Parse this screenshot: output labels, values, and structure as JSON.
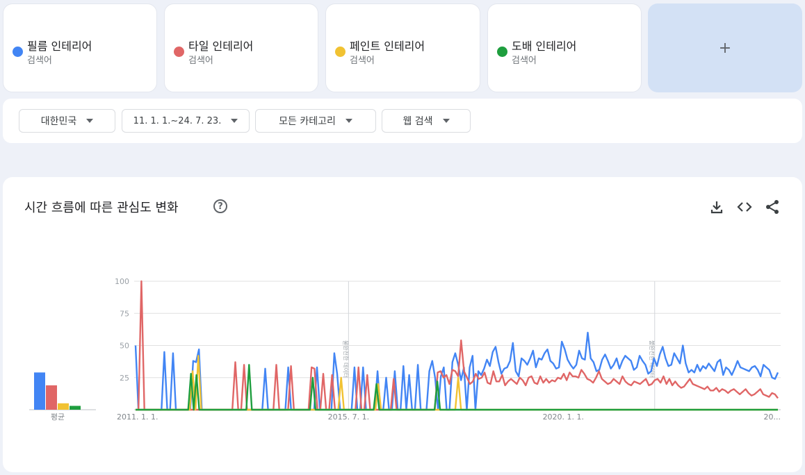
{
  "terms": [
    {
      "name": "필름 인테리어",
      "type": "검색어",
      "color": "#4285f4"
    },
    {
      "name": "타일 인테리어",
      "type": "검색어",
      "color": "#e06666"
    },
    {
      "name": "페인트 인테리어",
      "type": "검색어",
      "color": "#f1c232"
    },
    {
      "name": "도배 인테리어",
      "type": "검색어",
      "color": "#1e9e3e"
    }
  ],
  "add_term_label": "+",
  "filters": {
    "region": "대한민국",
    "period": "11. 1. 1.~24. 7. 23.",
    "category": "모든 카테고리",
    "search_type": "웹 검색"
  },
  "chart_panel": {
    "title": "시간 흐름에 따른 관심도 변화",
    "help_glyph": "?",
    "icons": [
      "download-icon",
      "embed-icon",
      "share-icon"
    ]
  },
  "chart_data": {
    "type": "line",
    "ylim": [
      0,
      100
    ],
    "yticks": [
      100,
      75,
      50,
      25
    ],
    "x_axis_labels": [
      "2011. 1. 1.",
      "2015. 7. 1.",
      "2020. 1. 1.",
      "20..."
    ],
    "x_range": [
      "2011-01-01",
      "2024-07-23"
    ],
    "partial_data_markers": [
      "2015-07-01",
      "2021-12-01"
    ],
    "partial_data_marker_text": "불완전한 데이터",
    "average": {
      "label": "평균",
      "values": [
        29,
        19,
        5,
        3
      ]
    },
    "series": [
      {
        "name": "필름 인테리어",
        "color": "#4285f4",
        "values": [
          50,
          0,
          0,
          0,
          0,
          0,
          0,
          0,
          0,
          0,
          45,
          0,
          0,
          44,
          0,
          0,
          0,
          0,
          0,
          0,
          38,
          37,
          47,
          0,
          0,
          0,
          0,
          0,
          0,
          0,
          0,
          0,
          0,
          0,
          0,
          0,
          0,
          0,
          0,
          0,
          0,
          0,
          0,
          0,
          0,
          32,
          0,
          0,
          0,
          0,
          0,
          0,
          0,
          33,
          0,
          0,
          0,
          0,
          0,
          0,
          0,
          0,
          0,
          33,
          0,
          0,
          0,
          0,
          0,
          44,
          28,
          0,
          0,
          0,
          0,
          0,
          33,
          0,
          0,
          33,
          0,
          0,
          0,
          0,
          30,
          0,
          0,
          25,
          0,
          0,
          30,
          0,
          0,
          34,
          0,
          27,
          0,
          0,
          35,
          0,
          0,
          0,
          30,
          38,
          25,
          0,
          26,
          33,
          0,
          0,
          37,
          44,
          35,
          23,
          33,
          0,
          33,
          42,
          0,
          30,
          27,
          32,
          39,
          34,
          45,
          49,
          37,
          28,
          32,
          33,
          38,
          52,
          30,
          26,
          40,
          38,
          35,
          40,
          46,
          33,
          40,
          39,
          44,
          47,
          38,
          36,
          32,
          33,
          53,
          47,
          39,
          35,
          32,
          35,
          46,
          40,
          39,
          60,
          40,
          37,
          30,
          31,
          39,
          43,
          38,
          32,
          35,
          40,
          32,
          38,
          42,
          40,
          38,
          31,
          33,
          42,
          38,
          35,
          28,
          30,
          40,
          34,
          43,
          49,
          40,
          34,
          35,
          44,
          40,
          36,
          50,
          36,
          29,
          31,
          29,
          35,
          30,
          34,
          32,
          36,
          33,
          30,
          37,
          39,
          27,
          33,
          31,
          27,
          32,
          38,
          33,
          32,
          31,
          30,
          33,
          34,
          31,
          26,
          35,
          33,
          31,
          25,
          24,
          29
        ]
      },
      {
        "name": "타일 인테리어",
        "color": "#e06666",
        "values": [
          0,
          0,
          100,
          0,
          0,
          0,
          0,
          0,
          0,
          0,
          0,
          0,
          0,
          0,
          0,
          0,
          0,
          0,
          0,
          0,
          0,
          0,
          0,
          0,
          0,
          0,
          0,
          0,
          0,
          0,
          0,
          0,
          0,
          0,
          37,
          0,
          0,
          35,
          0,
          0,
          0,
          0,
          0,
          0,
          0,
          0,
          0,
          0,
          35,
          0,
          0,
          0,
          0,
          34,
          0,
          0,
          0,
          0,
          0,
          0,
          33,
          32,
          0,
          0,
          28,
          0,
          0,
          27,
          0,
          0,
          0,
          0,
          0,
          0,
          0,
          0,
          33,
          0,
          0,
          27,
          0,
          0,
          0,
          0,
          0,
          0,
          0,
          0,
          24,
          0,
          0,
          0,
          0,
          0,
          0,
          0,
          0,
          0,
          0,
          0,
          0,
          0,
          0,
          29,
          30,
          25,
          27,
          20,
          31,
          30,
          26,
          54,
          30,
          25,
          20,
          22,
          28,
          24,
          25,
          29,
          21,
          20,
          30,
          22,
          22,
          27,
          19,
          22,
          24,
          22,
          20,
          25,
          23,
          19,
          25,
          26,
          21,
          20,
          26,
          21,
          24,
          21,
          23,
          22,
          25,
          24,
          28,
          23,
          29,
          26,
          26,
          25,
          31,
          28,
          24,
          23,
          21,
          25,
          30,
          24,
          22,
          20,
          21,
          24,
          22,
          20,
          26,
          22,
          20,
          19,
          22,
          21,
          20,
          22,
          24,
          19,
          20,
          23,
          24,
          21,
          26,
          20,
          24,
          19,
          22,
          19,
          17,
          18,
          21,
          24,
          20,
          19,
          18,
          17,
          16,
          18,
          15,
          15,
          17,
          14,
          16,
          15,
          13,
          15,
          16,
          14,
          12,
          14,
          16,
          13,
          11,
          12,
          14,
          16,
          12,
          11,
          10,
          13,
          12,
          9
        ]
      },
      {
        "name": "페인트 인테리어",
        "color": "#f1c232",
        "values": [
          0,
          0,
          0,
          0,
          0,
          0,
          0,
          0,
          0,
          0,
          0,
          0,
          0,
          0,
          0,
          0,
          0,
          0,
          0,
          0,
          30,
          0,
          42,
          0,
          0,
          0,
          0,
          0,
          0,
          0,
          0,
          0,
          0,
          0,
          0,
          0,
          0,
          0,
          0,
          0,
          0,
          0,
          0,
          0,
          0,
          0,
          0,
          0,
          0,
          0,
          0,
          0,
          0,
          0,
          0,
          0,
          0,
          0,
          0,
          0,
          0,
          0,
          0,
          0,
          0,
          0,
          0,
          0,
          0,
          0,
          0,
          0,
          25,
          0,
          0,
          0,
          0,
          0,
          0,
          0,
          0,
          0,
          0,
          0,
          0,
          20,
          0,
          0,
          0,
          0,
          0,
          0,
          0,
          0,
          0,
          0,
          0,
          0,
          0,
          0,
          0,
          0,
          0,
          0,
          0,
          0,
          0,
          0,
          0,
          0,
          0,
          0,
          0,
          25,
          0,
          0,
          0,
          0,
          0,
          0,
          0,
          0,
          0,
          0,
          0,
          0,
          0,
          0,
          0,
          0,
          0,
          0,
          0,
          0,
          0,
          0,
          0,
          0,
          0,
          0,
          0,
          0,
          0,
          0,
          0,
          0,
          0,
          0,
          0,
          0,
          0,
          0,
          0,
          0,
          0,
          0,
          0,
          0,
          0,
          0,
          0,
          0,
          0,
          0,
          0,
          0,
          0,
          0,
          0,
          0,
          0,
          0,
          0,
          0,
          0,
          0,
          0,
          0,
          0,
          0,
          0,
          0,
          0,
          0,
          0,
          0,
          0,
          0,
          0,
          0,
          0,
          0,
          0,
          0,
          0,
          0,
          0,
          0,
          0,
          0,
          0,
          0,
          0,
          0,
          0,
          0,
          0,
          0,
          0,
          0,
          0,
          0,
          0,
          0,
          0,
          0,
          0,
          0,
          0,
          0,
          0,
          0,
          0,
          0,
          0,
          0
        ]
      },
      {
        "name": "도배 인테리어",
        "color": "#1e9e3e",
        "values": [
          0,
          0,
          0,
          0,
          0,
          0,
          0,
          0,
          0,
          0,
          0,
          0,
          0,
          0,
          0,
          0,
          0,
          0,
          0,
          0,
          28,
          0,
          27,
          0,
          0,
          0,
          0,
          0,
          0,
          0,
          0,
          0,
          0,
          0,
          0,
          0,
          0,
          0,
          0,
          0,
          0,
          35,
          0,
          0,
          0,
          0,
          0,
          0,
          0,
          0,
          0,
          0,
          0,
          0,
          0,
          0,
          0,
          0,
          0,
          0,
          0,
          0,
          0,
          0,
          25,
          0,
          0,
          0,
          0,
          0,
          0,
          0,
          0,
          0,
          0,
          0,
          0,
          0,
          0,
          0,
          0,
          0,
          0,
          0,
          0,
          0,
          0,
          20,
          0,
          0,
          0,
          0,
          0,
          0,
          0,
          0,
          0,
          0,
          0,
          0,
          0,
          0,
          0,
          0,
          0,
          0,
          0,
          0,
          0,
          22,
          0,
          0,
          0,
          0,
          0,
          0,
          0,
          0,
          0,
          0,
          0,
          0,
          0,
          0,
          0,
          0,
          0,
          0,
          0,
          0,
          0,
          0,
          0,
          0,
          0,
          0,
          0,
          0,
          0,
          0,
          0,
          0,
          0,
          0,
          0,
          0,
          0,
          0,
          0,
          0,
          0,
          0,
          0,
          0,
          0,
          0,
          0,
          0,
          0,
          0,
          0,
          0,
          0,
          0,
          0,
          0,
          0,
          0,
          0,
          0,
          0,
          0,
          0,
          0,
          0,
          0,
          0,
          0,
          0,
          0,
          0,
          0,
          0,
          0,
          0,
          0,
          0,
          0,
          0,
          0,
          0,
          0,
          0,
          0,
          0,
          0,
          0,
          0,
          0,
          0,
          0,
          0,
          0,
          0,
          0,
          0,
          0,
          0,
          0,
          0,
          0,
          0,
          0,
          0,
          0,
          0,
          0,
          0,
          0,
          0,
          0,
          0,
          0,
          0,
          0,
          0,
          0,
          0,
          0,
          0,
          0,
          0,
          0
        ]
      }
    ]
  }
}
